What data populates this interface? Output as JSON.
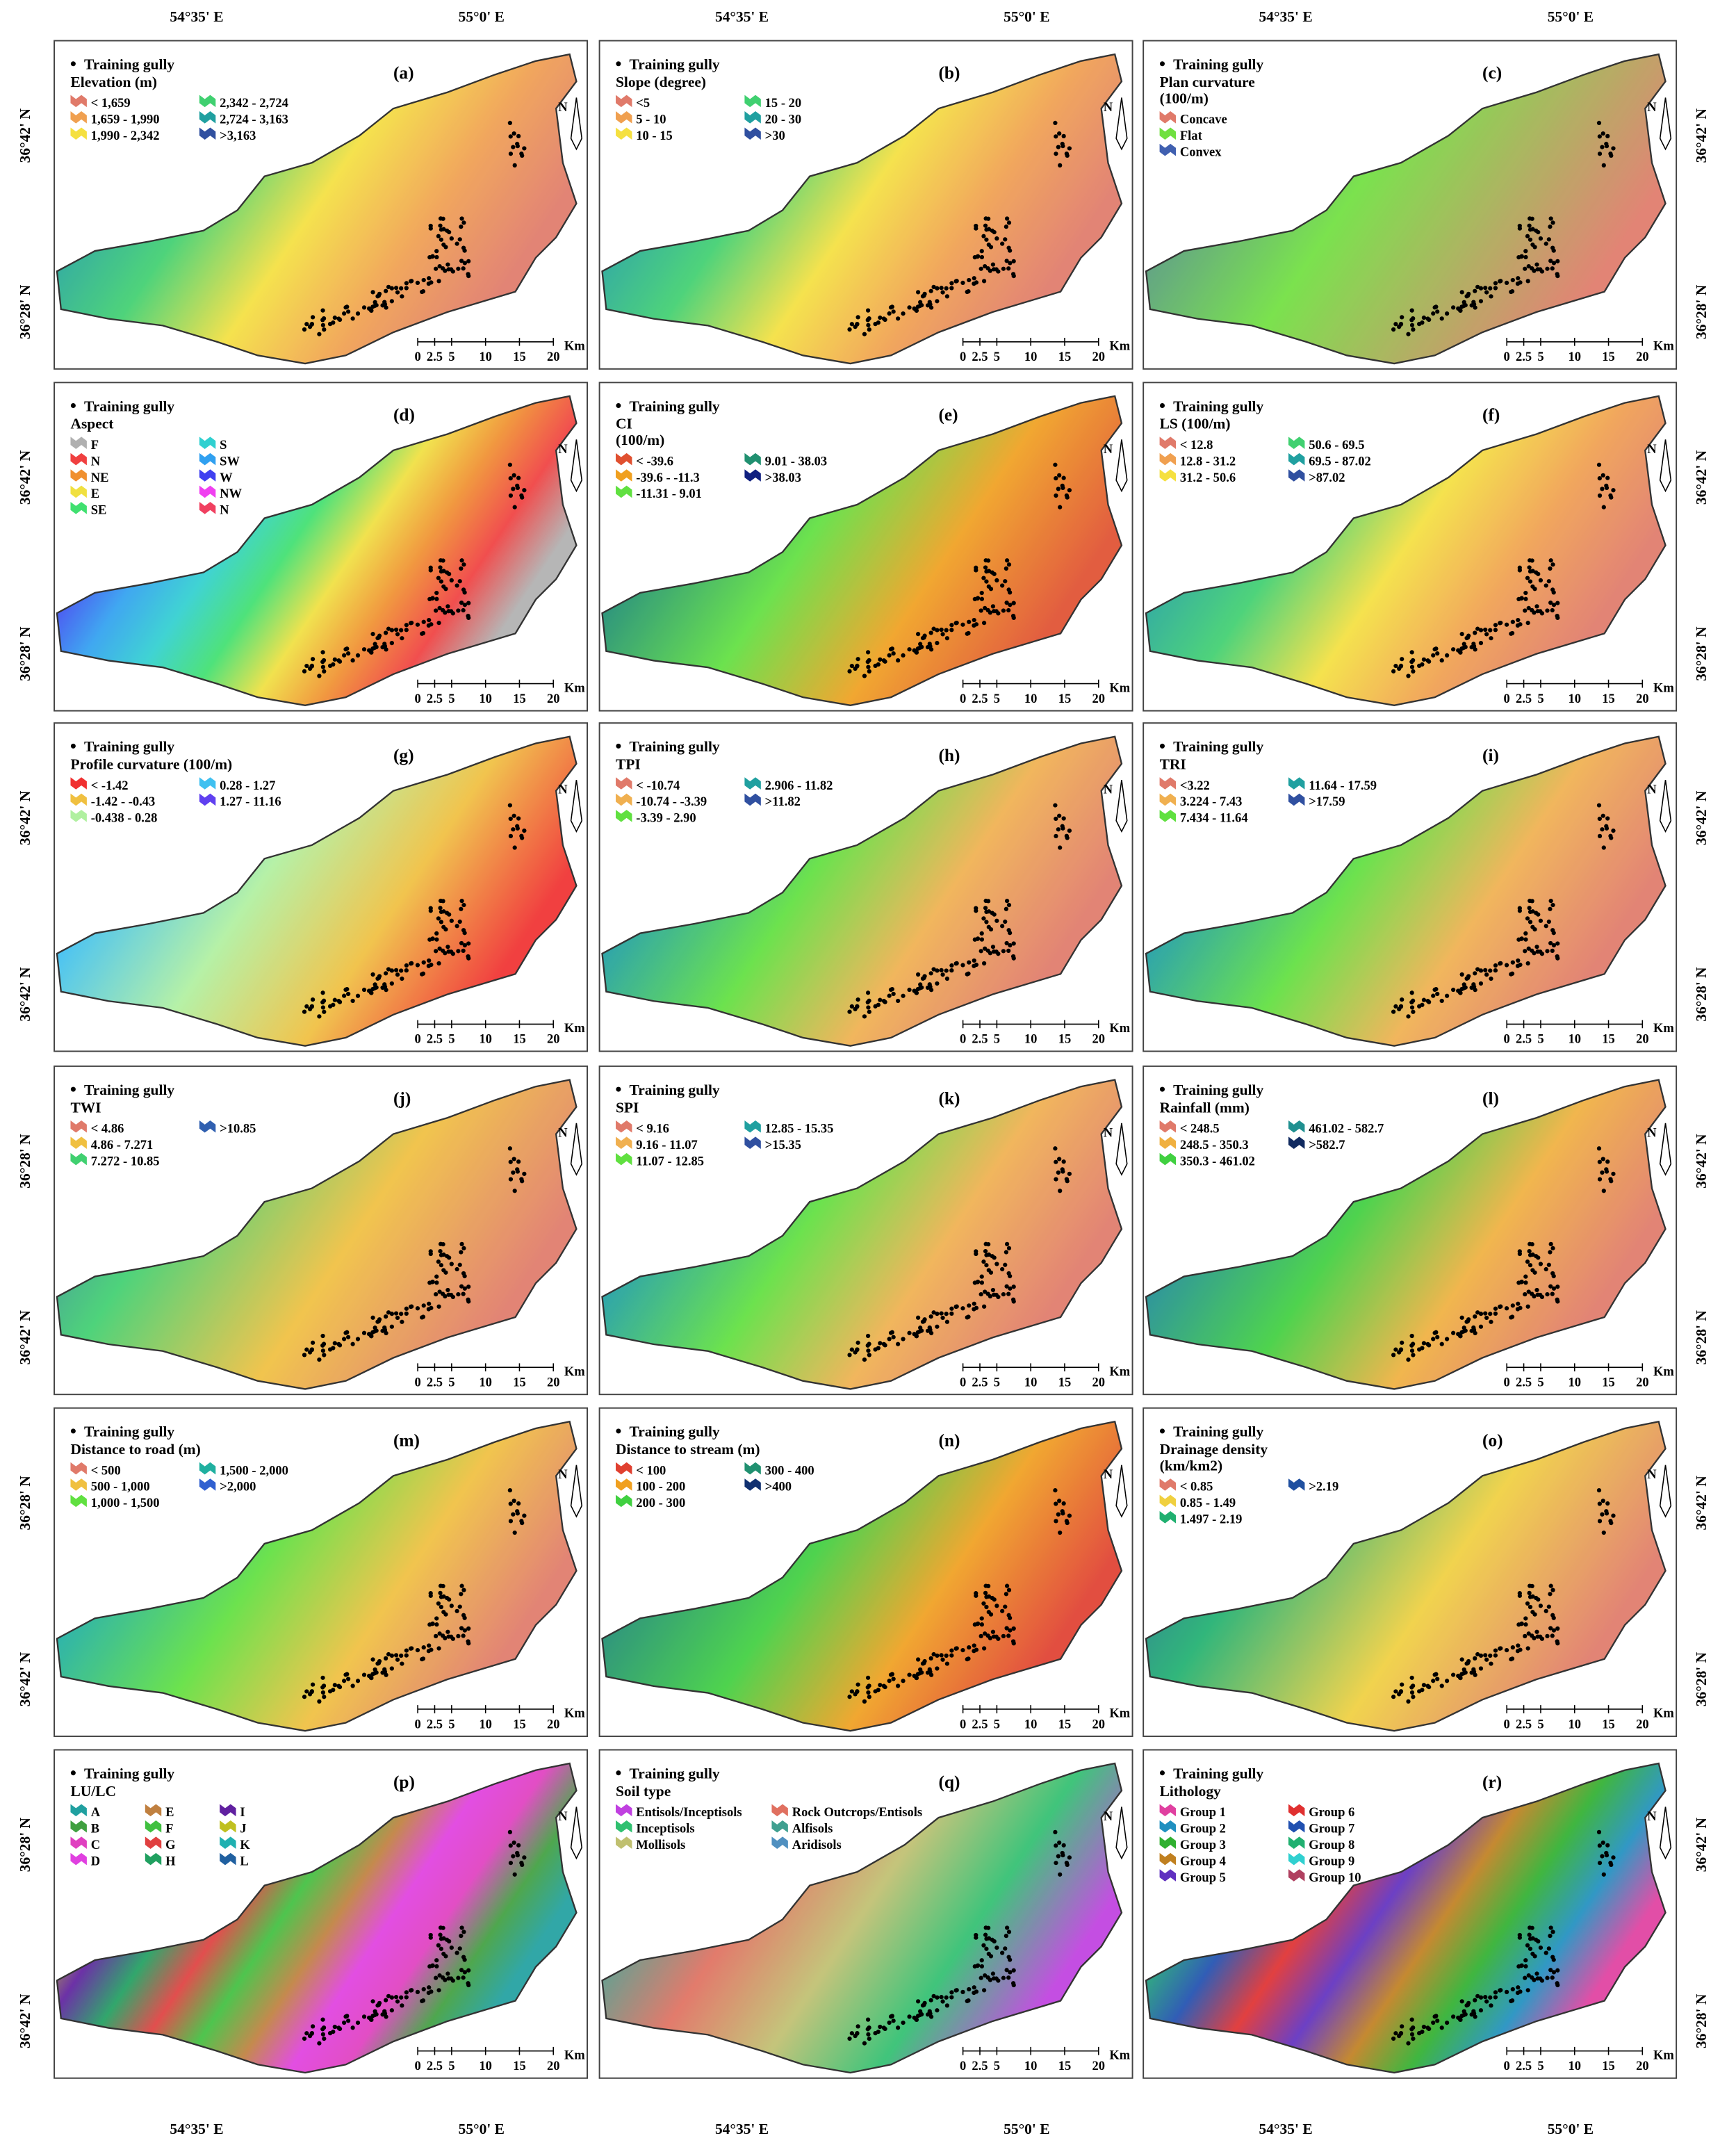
{
  "lon_labels_top": [
    [
      "54°35' E",
      "55°0' E"
    ],
    [
      "54°35' E",
      "55°0' E"
    ],
    [
      "54°35' E",
      "55°0' E"
    ]
  ],
  "lon_labels_bottom": [
    [
      "54°35' E",
      "55°0' E"
    ],
    [
      "54°35' E",
      "55°0' E"
    ],
    [
      "54°35' E",
      "55°0' E"
    ]
  ],
  "common": {
    "legend_marker": "Training gully",
    "north": "N",
    "scale_ticks": [
      "0",
      "2.5",
      "5",
      "10",
      "15",
      "20"
    ],
    "scale_unit": "Km"
  },
  "panels": [
    {
      "letter": "(a)",
      "legend_title": [
        "Elevation (m)"
      ],
      "lat_labels": [
        "36°42' N",
        "36°28' N"
      ],
      "items": [
        {
          "label": "< 1,659",
          "color": "#e07a6a"
        },
        {
          "label": "1,659 - 1,990",
          "color": "#f0a050"
        },
        {
          "label": "1,990 - 2,342",
          "color": "#f5e040"
        },
        {
          "label": "2,342 - 2,724",
          "color": "#40d070"
        },
        {
          "label": "2,724 - 3,163",
          "color": "#20a0a0"
        },
        {
          "label": ">3,163",
          "color": "#3050a0"
        }
      ]
    },
    {
      "letter": "(b)",
      "legend_title": [
        "Slope (degree)"
      ],
      "items": [
        {
          "label": "<5",
          "color": "#e07a6a"
        },
        {
          "label": "5 - 10",
          "color": "#f0a050"
        },
        {
          "label": "10 - 15",
          "color": "#f5e040"
        },
        {
          "label": "15 - 20",
          "color": "#40d070"
        },
        {
          "label": "20 - 30",
          "color": "#20a0a0"
        },
        {
          "label": ">30",
          "color": "#3050a0"
        }
      ]
    },
    {
      "letter": "(c)",
      "legend_title": [
        "Plan curvature",
        "(100/m)"
      ],
      "lat_labels": [
        "36°42' N",
        "36°28' N"
      ],
      "items": [
        {
          "label": "Concave",
          "color": "#e07a6a"
        },
        {
          "label": "Flat",
          "color": "#70e040"
        },
        {
          "label": "Convex",
          "color": "#4060b0"
        }
      ]
    },
    {
      "letter": "(d)",
      "legend_title": [
        "Aspect"
      ],
      "lat_labels": [
        "36°42' N",
        "36°28' N"
      ],
      "items": [
        {
          "label": "F",
          "color": "#b0b0b0"
        },
        {
          "label": "N",
          "color": "#f04040"
        },
        {
          "label": "NE",
          "color": "#f09030"
        },
        {
          "label": "E",
          "color": "#f0e040"
        },
        {
          "label": "SE",
          "color": "#40e070"
        },
        {
          "label": "S",
          "color": "#30d0d0"
        },
        {
          "label": "SW",
          "color": "#30a0f0"
        },
        {
          "label": "W",
          "color": "#4040f0"
        },
        {
          "label": "NW",
          "color": "#f040f0"
        },
        {
          "label": "N",
          "color": "#f04060"
        }
      ]
    },
    {
      "letter": "(e)",
      "legend_title": [
        "CI",
        "(100/m)"
      ],
      "items": [
        {
          "label": "< -39.6",
          "color": "#e05030"
        },
        {
          "label": "-39.6 - -11.3",
          "color": "#f0a020"
        },
        {
          "label": "-11.31 - 9.01",
          "color": "#60e040"
        },
        {
          "label": "9.01 - 38.03",
          "color": "#209070"
        },
        {
          "label": ">38.03",
          "color": "#102080"
        }
      ]
    },
    {
      "letter": "(f)",
      "legend_title": [
        "LS (100/m)"
      ],
      "lat_labels": [
        "36°42' N",
        "36°28' N"
      ],
      "items": [
        {
          "label": "< 12.8",
          "color": "#e07a6a"
        },
        {
          "label": "12.8 - 31.2",
          "color": "#f0a050"
        },
        {
          "label": "31.2 - 50.6",
          "color": "#f5e040"
        },
        {
          "label": "50.6 - 69.5",
          "color": "#40d070"
        },
        {
          "label": "69.5 - 87.02",
          "color": "#20a0a0"
        },
        {
          "label": ">87.02",
          "color": "#3050a0"
        }
      ]
    },
    {
      "letter": "(g)",
      "legend_title": [
        "Profile curvature (100/m)"
      ],
      "lat_labels": [
        "36°42' N",
        "36°42' N"
      ],
      "items": [
        {
          "label": "< -1.42",
          "color": "#f03030"
        },
        {
          "label": "-1.42 - -0.43",
          "color": "#f0c040"
        },
        {
          "label": "-0.438 - 0.28",
          "color": "#b0f0a0"
        },
        {
          "label": "0.28 - 1.27",
          "color": "#40c0f0"
        },
        {
          "label": "1.27 - 11.16",
          "color": "#6040f0"
        }
      ]
    },
    {
      "letter": "(h)",
      "legend_title": [
        "TPI"
      ],
      "items": [
        {
          "label": "< -10.74",
          "color": "#e07a6a"
        },
        {
          "label": "-10.74 - -3.39",
          "color": "#f0b050"
        },
        {
          "label": "-3.39 - 2.90",
          "color": "#60e040"
        },
        {
          "label": "2.906 - 11.82",
          "color": "#20a0a0"
        },
        {
          "label": ">11.82",
          "color": "#3050a0"
        }
      ]
    },
    {
      "letter": "(i)",
      "legend_title": [
        "TRI"
      ],
      "lat_labels": [
        "36°42' N",
        "36°28' N"
      ],
      "items": [
        {
          "label": "<3.22",
          "color": "#e07a6a"
        },
        {
          "label": "3.224 - 7.43",
          "color": "#f0b050"
        },
        {
          "label": "7.434 - 11.64",
          "color": "#60e040"
        },
        {
          "label": "11.64 - 17.59",
          "color": "#20a0a0"
        },
        {
          "label": ">17.59",
          "color": "#3050a0"
        }
      ]
    },
    {
      "letter": "(j)",
      "legend_title": [
        "TWI"
      ],
      "lat_labels": [
        "36°28' N",
        "36°42' N"
      ],
      "items": [
        {
          "label": "< 4.86",
          "color": "#e07a6a"
        },
        {
          "label": "4.86 - 7.271",
          "color": "#f0c040"
        },
        {
          "label": "7.272 - 10.85",
          "color": "#40d070"
        },
        {
          "label": ">10.85",
          "color": "#3060b0"
        }
      ]
    },
    {
      "letter": "(k)",
      "legend_title": [
        "SPI"
      ],
      "items": [
        {
          "label": "< 9.16",
          "color": "#e07a6a"
        },
        {
          "label": "9.16 - 11.07",
          "color": "#f0b050"
        },
        {
          "label": "11.07 - 12.85",
          "color": "#60e040"
        },
        {
          "label": "12.85 - 15.35",
          "color": "#20a0a0"
        },
        {
          "label": ">15.35",
          "color": "#3050a0"
        }
      ]
    },
    {
      "letter": "(l)",
      "legend_title": [
        "Rainfall (mm)"
      ],
      "lat_labels": [
        "36°42' N",
        "36°28' N"
      ],
      "items": [
        {
          "label": "< 248.5",
          "color": "#e07a6a"
        },
        {
          "label": "248.5 - 350.3",
          "color": "#f0b040"
        },
        {
          "label": "350.3 - 461.02",
          "color": "#40d040"
        },
        {
          "label": "461.02 - 582.7",
          "color": "#209090"
        },
        {
          "label": ">582.7",
          "color": "#102a60"
        }
      ]
    },
    {
      "letter": "(m)",
      "legend_title": [
        "Distance to road (m)"
      ],
      "lat_labels": [
        "36°28' N",
        "36°42' N"
      ],
      "items": [
        {
          "label": "< 500",
          "color": "#e07a6a"
        },
        {
          "label": "500 - 1,000",
          "color": "#f0c040"
        },
        {
          "label": "1,000 - 1,500",
          "color": "#60e040"
        },
        {
          "label": "1,500 - 2,000",
          "color": "#20b0a0"
        },
        {
          "label": ">2,000",
          "color": "#3060d0"
        }
      ]
    },
    {
      "letter": "(n)",
      "legend_title": [
        "Distance to stream (m)"
      ],
      "items": [
        {
          "label": "< 100",
          "color": "#e04030"
        },
        {
          "label": "100 - 200",
          "color": "#f0a020"
        },
        {
          "label": "200 - 300",
          "color": "#40d040"
        },
        {
          "label": "300 - 400",
          "color": "#209070"
        },
        {
          "label": ">400",
          "color": "#103070"
        }
      ]
    },
    {
      "letter": "(o)",
      "legend_title": [
        "Drainage density",
        "(km/km2)"
      ],
      "lat_labels": [
        "36°42' N",
        "36°28' N"
      ],
      "items": [
        {
          "label": "< 0.85",
          "color": "#e07a6a"
        },
        {
          "label": "0.85 - 1.49",
          "color": "#f0d040"
        },
        {
          "label": "1.497 - 2.19",
          "color": "#20b070"
        },
        {
          "label": ">2.19",
          "color": "#2050a0"
        }
      ]
    },
    {
      "letter": "(p)",
      "legend_title": [
        "LU/LC"
      ],
      "lat_labels": [
        "36°28' N",
        "36°42' N"
      ],
      "items": [
        {
          "label": "A",
          "color": "#20a0a0"
        },
        {
          "label": "B",
          "color": "#40a040"
        },
        {
          "label": "C",
          "color": "#e040c0"
        },
        {
          "label": "D",
          "color": "#e040e0"
        },
        {
          "label": "E",
          "color": "#c08040"
        },
        {
          "label": "F",
          "color": "#40c040"
        },
        {
          "label": "G",
          "color": "#e04040"
        },
        {
          "label": "H",
          "color": "#20a060"
        },
        {
          "label": "I",
          "color": "#6020a0"
        },
        {
          "label": "J",
          "color": "#c0c020"
        },
        {
          "label": "K",
          "color": "#20b0b0"
        },
        {
          "label": "L",
          "color": "#2060a0"
        }
      ]
    },
    {
      "letter": "(q)",
      "legend_title": [
        "Soil type"
      ],
      "items": [
        {
          "label": "Entisols/Inceptisols",
          "color": "#c040e0"
        },
        {
          "label": "Inceptisols",
          "color": "#30c070"
        },
        {
          "label": "Mollisols",
          "color": "#c0c070"
        },
        {
          "label": "Rock Outcrops/Entisols",
          "color": "#e07060"
        },
        {
          "label": "Alfisols",
          "color": "#40a090"
        },
        {
          "label": "Aridisols",
          "color": "#5090c0"
        }
      ]
    },
    {
      "letter": "(r)",
      "legend_title": [
        "Lithology"
      ],
      "lat_labels": [
        "36°42' N",
        "36°28' N"
      ],
      "items": [
        {
          "label": "Group 1",
          "color": "#e040a0"
        },
        {
          "label": "Group 2",
          "color": "#2090c0"
        },
        {
          "label": "Group 3",
          "color": "#30b030"
        },
        {
          "label": "Group 4",
          "color": "#c08020"
        },
        {
          "label": "Group 5",
          "color": "#6030c0"
        },
        {
          "label": "Group 6",
          "color": "#e03030"
        },
        {
          "label": "Group 7",
          "color": "#2050b0"
        },
        {
          "label": "Group 8",
          "color": "#20b070"
        },
        {
          "label": "Group 9",
          "color": "#30d0d0"
        },
        {
          "label": "Group 10",
          "color": "#b04060"
        }
      ]
    }
  ]
}
